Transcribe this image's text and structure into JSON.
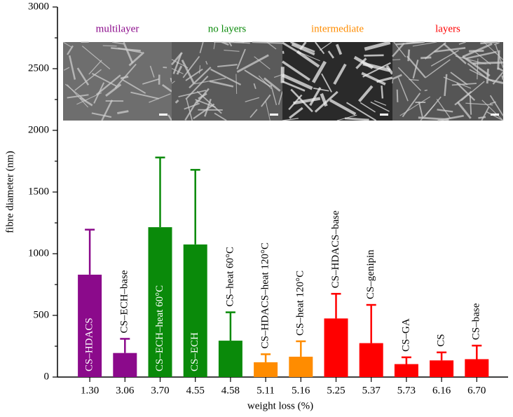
{
  "chart_data": {
    "type": "bar",
    "ylabel": "fibre diameter (nm)",
    "xlabel": "weight loss (%)",
    "categories": [
      "1.30",
      "3.06",
      "3.70",
      "4.55",
      "4.58",
      "5.11",
      "5.16",
      "5.25",
      "5.37",
      "5.73",
      "6.16",
      "6.70"
    ],
    "bar_labels": [
      "CS–HDACS",
      "CS–ECH–base",
      "CS–ECH–heat 60°C",
      "CS–ECH",
      "CS–heat 60°C",
      "CS–HDACS–heat 120°C",
      "CS–heat 120°C",
      "CS–HDACS–base",
      "CS–genipin",
      "CS–GA",
      "CS",
      "CS–base"
    ],
    "values": [
      830,
      195,
      1215,
      1075,
      295,
      120,
      165,
      475,
      275,
      105,
      135,
      145
    ],
    "errors": [
      365,
      115,
      565,
      605,
      230,
      65,
      125,
      200,
      310,
      55,
      65,
      110
    ],
    "colors": [
      "#8b0a8b",
      "#8b0a8b",
      "#0a8a0a",
      "#0a8a0a",
      "#0a8a0a",
      "#ff8c00",
      "#ff8c00",
      "#ff0000",
      "#ff0000",
      "#ff0000",
      "#ff0000",
      "#ff0000"
    ],
    "groups": [
      {
        "label": "multilayer",
        "color": "#8b0a8b"
      },
      {
        "label": "no layers",
        "color": "#0a8a0a"
      },
      {
        "label": "intermediate",
        "color": "#ff8c00"
      },
      {
        "label": "layers",
        "color": "#ff0000"
      }
    ],
    "ylim": [
      0,
      3000
    ],
    "yticks": [
      0,
      500,
      1000,
      1500,
      2000,
      2500,
      3000
    ],
    "yminorticks": [
      250,
      750,
      1250,
      1750,
      2250,
      2750
    ]
  }
}
